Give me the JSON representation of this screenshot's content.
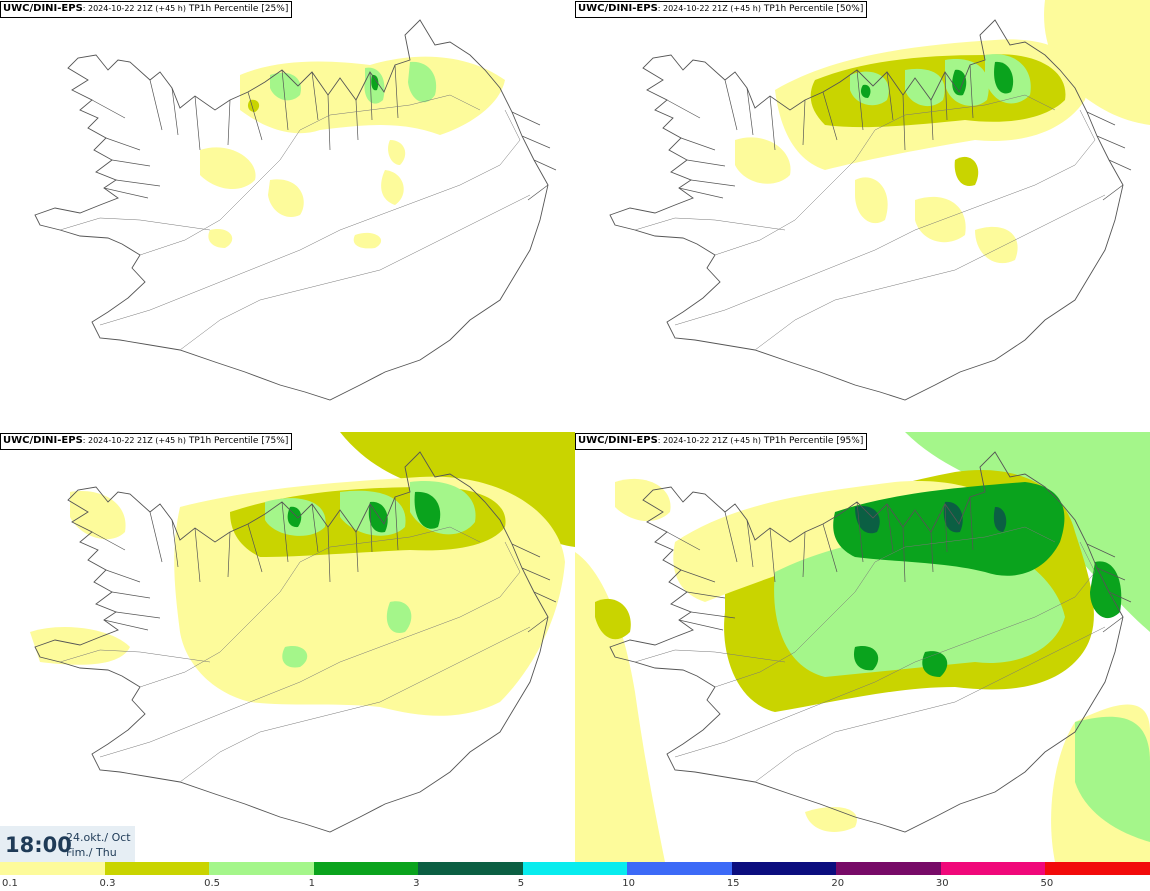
{
  "panels": [
    {
      "id": "p1",
      "source": "UWC/DINI-EPS",
      "run": ": 2024-10-22 21Z (+45 h)",
      "variable": " TP1h Percentile [25%]"
    },
    {
      "id": "p2",
      "source": "UWC/DINI-EPS",
      "run": ": 2024-10-22 21Z (+45 h)",
      "variable": " TP1h Percentile [50%]"
    },
    {
      "id": "p3",
      "source": "UWC/DINI-EPS",
      "run": ": 2024-10-22 21Z (+45 h)",
      "variable": " TP1h Percentile [75%]"
    },
    {
      "id": "p4",
      "source": "UWC/DINI-EPS",
      "run": ": 2024-10-22 21Z (+45 h)",
      "variable": " TP1h Percentile [95%]"
    }
  ],
  "valid_time": {
    "hour": "18:00",
    "date": "24.okt./ Oct",
    "weekday": "Fim./ Thu"
  },
  "legend": {
    "colors": [
      "#fdfb9b",
      "#c9d400",
      "#a4f68a",
      "#0aa31d",
      "#0b5f43",
      "#08ecee",
      "#3c6af7",
      "#0b0d7e",
      "#770a67",
      "#f0087a",
      "#f20b0b"
    ],
    "labels": [
      "0.1",
      "0.3",
      "0.5",
      "1",
      "3",
      "5",
      "10",
      "15",
      "20",
      "30",
      "50"
    ]
  }
}
